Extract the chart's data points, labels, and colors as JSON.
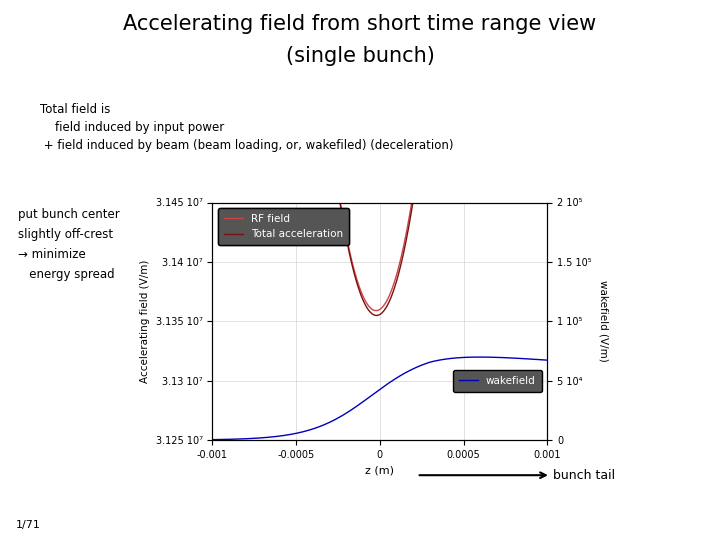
{
  "title_line1": "Accelerating field from short time range view",
  "title_line2": "(single bunch)",
  "subtitle_line1": "Total field is",
  "subtitle_line2": "    field induced by input power",
  "subtitle_line3": " + field induced by beam (beam loading, or, wakefiled) (deceleration)",
  "left_text_line1": "put bunch center",
  "left_text_line2": "slightly off-crest",
  "left_text_line3": "→ minimize",
  "left_text_line4": "   energy spread",
  "xlabel": "z (m)",
  "ylabel_left": "Accelerating field (V/m)",
  "ylabel_right": "wakefield (V/m)",
  "xlim": [
    -0.001,
    0.001
  ],
  "ylim_left": [
    31250000.0,
    31450000.0
  ],
  "ylim_right": [
    0,
    200000.0
  ],
  "yticks_left": [
    31250000.0,
    31300000.0,
    31350000.0,
    31400000.0,
    31450000.0
  ],
  "ytick_labels_left": [
    "3.125 10⁷",
    "3.13 10⁷",
    "3.135 10⁷",
    "3.14 10⁷",
    "3.145 10⁷"
  ],
  "yticks_right": [
    0,
    50000.0,
    100000.0,
    150000.0,
    200000.0
  ],
  "ytick_labels_right": [
    "0",
    "5 10⁴",
    "1 10⁵",
    "1.5 10⁵",
    "2 10⁵"
  ],
  "xticks": [
    -0.001,
    -0.0005,
    0,
    0.0005,
    0.001
  ],
  "xtick_labels": [
    "-0.001",
    "-0.0005",
    "0",
    "0.0005",
    "0.001"
  ],
  "rf_color": "#cc4444",
  "total_color": "#7b1010",
  "wake_color": "#0000bb",
  "legend1_labels": [
    "RF field",
    "Total acceleration"
  ],
  "legend2_label": "wakefield",
  "page_label": "1/71",
  "bunch_tail_label": "bunch tail",
  "background_color": "#ffffff",
  "legend_facecolor": "#555555",
  "legend_textcolor": "#ffffff"
}
